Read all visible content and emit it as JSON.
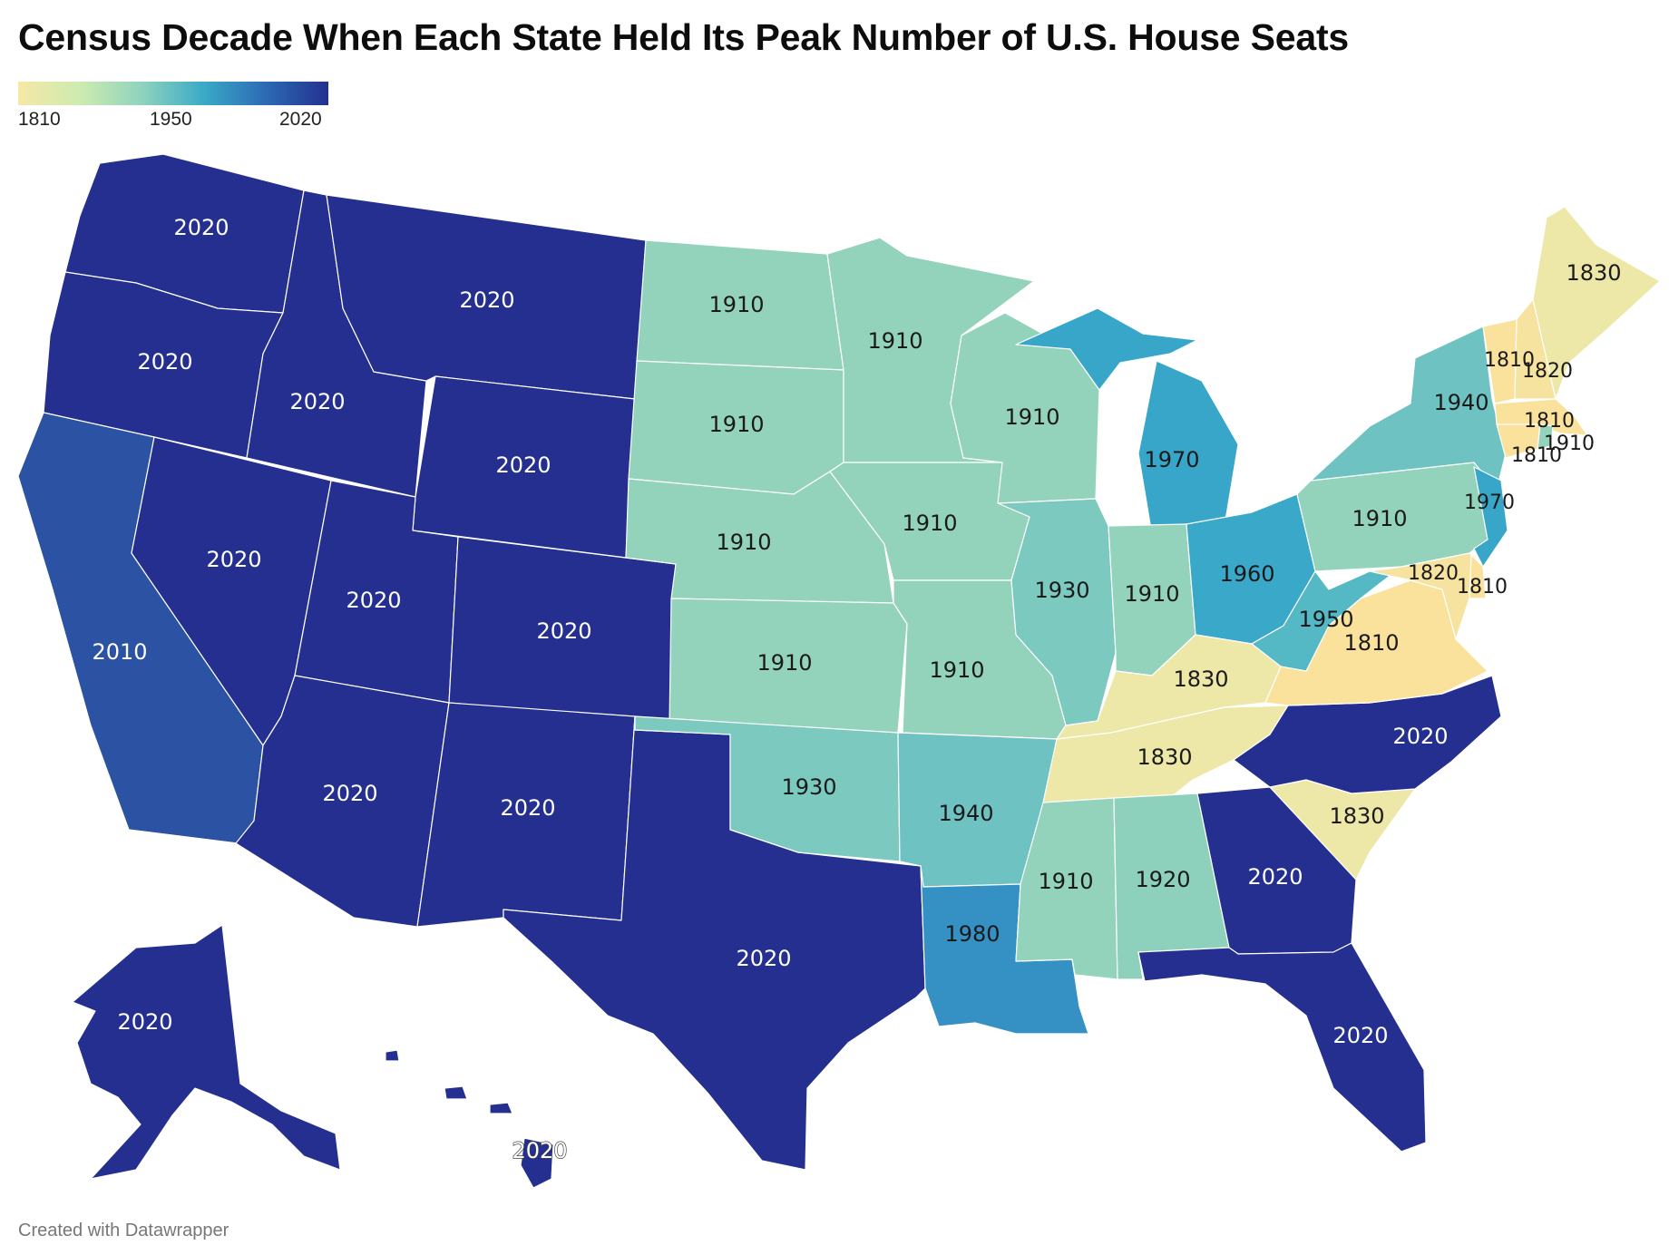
{
  "title": "Census Decade When Each State Held Its Peak Number of U.S. House Seats",
  "legend": {
    "min_label": "1810",
    "mid_label": "1950",
    "max_label": "2020",
    "gradient_colors": [
      "#f6e8a6",
      "#cdebb0",
      "#8fd3bd",
      "#3aa9c7",
      "#2c6ab4",
      "#23318f"
    ]
  },
  "colors": {
    "c1810": "#fae19c",
    "c1820": "#f7e3a0",
    "c1830": "#ede8a8",
    "c1910": "#93d3bb",
    "c1920": "#8dd1bd",
    "c1930": "#7cc9c0",
    "c1940": "#6ec2c2",
    "c1950": "#55b8c5",
    "c1960": "#3aa9c9",
    "c1970": "#38a6c8",
    "c1980": "#3590c4",
    "c2010": "#2c52a3",
    "c2020": "#242f8f"
  },
  "states": [
    {
      "name": "WA",
      "value": "2020"
    },
    {
      "name": "OR",
      "value": "2020"
    },
    {
      "name": "CA",
      "value": "2010"
    },
    {
      "name": "ID",
      "value": "2020"
    },
    {
      "name": "NV",
      "value": "2020"
    },
    {
      "name": "MT",
      "value": "2020"
    },
    {
      "name": "WY",
      "value": "2020"
    },
    {
      "name": "UT",
      "value": "2020"
    },
    {
      "name": "AZ",
      "value": "2020"
    },
    {
      "name": "CO",
      "value": "2020"
    },
    {
      "name": "NM",
      "value": "2020"
    },
    {
      "name": "TX",
      "value": "2020"
    },
    {
      "name": "ND",
      "value": "1910"
    },
    {
      "name": "SD",
      "value": "1910"
    },
    {
      "name": "NE",
      "value": "1910"
    },
    {
      "name": "KS",
      "value": "1910"
    },
    {
      "name": "OK",
      "value": "1930"
    },
    {
      "name": "MN",
      "value": "1910"
    },
    {
      "name": "IA",
      "value": "1910"
    },
    {
      "name": "MO",
      "value": "1910"
    },
    {
      "name": "AR",
      "value": "1940"
    },
    {
      "name": "LA",
      "value": "1980"
    },
    {
      "name": "WI",
      "value": "1910"
    },
    {
      "name": "IL",
      "value": "1930"
    },
    {
      "name": "MI",
      "value": "1970"
    },
    {
      "name": "IN",
      "value": "1910"
    },
    {
      "name": "OH",
      "value": "1960"
    },
    {
      "name": "KY",
      "value": "1830"
    },
    {
      "name": "TN",
      "value": "1830"
    },
    {
      "name": "MS",
      "value": "1910"
    },
    {
      "name": "AL",
      "value": "1920"
    },
    {
      "name": "GA",
      "value": "2020"
    },
    {
      "name": "FL",
      "value": "2020"
    },
    {
      "name": "SC",
      "value": "1830"
    },
    {
      "name": "NC",
      "value": "2020"
    },
    {
      "name": "VA",
      "value": "1810"
    },
    {
      "name": "WV",
      "value": "1950"
    },
    {
      "name": "PA",
      "value": "1910"
    },
    {
      "name": "NY",
      "value": "1940"
    },
    {
      "name": "NJ",
      "value": "1970"
    },
    {
      "name": "DE",
      "value": "1810"
    },
    {
      "name": "MD",
      "value": "1820"
    },
    {
      "name": "VT",
      "value": "1810"
    },
    {
      "name": "NH",
      "value": "1820"
    },
    {
      "name": "ME",
      "value": "1830"
    },
    {
      "name": "MA",
      "value": "1810"
    },
    {
      "name": "RI",
      "value": "1910"
    },
    {
      "name": "CT",
      "value": "1810"
    },
    {
      "name": "AK",
      "value": "2020"
    },
    {
      "name": "HI",
      "value": "2020"
    }
  ],
  "footer": "Created with Datawrapper"
}
